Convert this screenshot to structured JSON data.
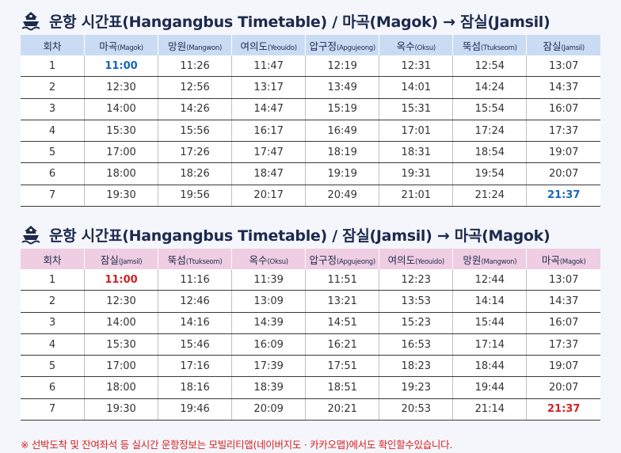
{
  "colors": {
    "blue_header": "#c9dcf3",
    "pink_header": "#efcde2",
    "highlight_blue": "#1565c0",
    "highlight_red": "#d71f1f",
    "title": "#1d2a4d"
  },
  "icons": {
    "title_icon": "ship-icon"
  },
  "timetable1": {
    "title": "운항 시간표(Hangangbus Timetable) / 마곡(Magok) → 잠실(Jamsil)",
    "headers": [
      {
        "ko": "회차",
        "en": ""
      },
      {
        "ko": "마곡",
        "en": "(Magok)"
      },
      {
        "ko": "망원",
        "en": "(Mangwon)"
      },
      {
        "ko": "여의도",
        "en": "(Yeouido)"
      },
      {
        "ko": "압구정",
        "en": "(Apgujeong)"
      },
      {
        "ko": "옥수",
        "en": "(Oksu)"
      },
      {
        "ko": "뚝섬",
        "en": "(Ttukseom)"
      },
      {
        "ko": "잠실",
        "en": "(Jamsil)"
      }
    ],
    "rows": [
      [
        "1",
        "11:00",
        "11:26",
        "11:47",
        "12:19",
        "12:31",
        "12:54",
        "13:07"
      ],
      [
        "2",
        "12:30",
        "12:56",
        "13:17",
        "13:49",
        "14:01",
        "14:24",
        "14:37"
      ],
      [
        "3",
        "14:00",
        "14:26",
        "14:47",
        "15:19",
        "15:31",
        "15:54",
        "16:07"
      ],
      [
        "4",
        "15:30",
        "15:56",
        "16:17",
        "16:49",
        "17:01",
        "17:24",
        "17:37"
      ],
      [
        "5",
        "17:00",
        "17:26",
        "17:47",
        "18:19",
        "18:31",
        "18:54",
        "19:07"
      ],
      [
        "6",
        "18:00",
        "18:26",
        "18:47",
        "19:19",
        "19:31",
        "19:54",
        "20:07"
      ],
      [
        "7",
        "19:30",
        "19:56",
        "20:17",
        "20:49",
        "21:01",
        "21:24",
        "21:37"
      ]
    ]
  },
  "timetable2": {
    "title": "운항 시간표(Hangangbus Timetable) / 잠실(Jamsil) → 마곡(Magok)",
    "headers": [
      {
        "ko": "회차",
        "en": ""
      },
      {
        "ko": "잠실",
        "en": "(Jamsil)"
      },
      {
        "ko": "뚝섬",
        "en": "(Ttukseom)"
      },
      {
        "ko": "옥수",
        "en": "(Oksu)"
      },
      {
        "ko": "압구정",
        "en": "(Apgujeong)"
      },
      {
        "ko": "여의도",
        "en": "(Yeouido)"
      },
      {
        "ko": "망원",
        "en": "(Mangwon)"
      },
      {
        "ko": "마곡",
        "en": "(Magok)"
      }
    ],
    "rows": [
      [
        "1",
        "11:00",
        "11:16",
        "11:39",
        "11:51",
        "12:23",
        "12:44",
        "13:07"
      ],
      [
        "2",
        "12:30",
        "12:46",
        "13:09",
        "13:21",
        "13:53",
        "14:14",
        "14:37"
      ],
      [
        "3",
        "14:00",
        "14:16",
        "14:39",
        "14:51",
        "15:23",
        "15:44",
        "16:07"
      ],
      [
        "4",
        "15:30",
        "15:46",
        "16:09",
        "16:21",
        "16:53",
        "17:14",
        "17:37"
      ],
      [
        "5",
        "17:00",
        "17:16",
        "17:39",
        "17:51",
        "18:23",
        "18:44",
        "19:07"
      ],
      [
        "6",
        "18:00",
        "18:16",
        "18:39",
        "18:51",
        "19:23",
        "19:44",
        "20:07"
      ],
      [
        "7",
        "19:30",
        "19:46",
        "20:09",
        "20:21",
        "20:53",
        "21:14",
        "21:37"
      ]
    ]
  },
  "footnote": "※ 선박도착 및 잔여좌석 등 실시간 운항정보는 모빌리티앱(네이버지도 · 카카오맵)에서도 확인할수있습니다."
}
